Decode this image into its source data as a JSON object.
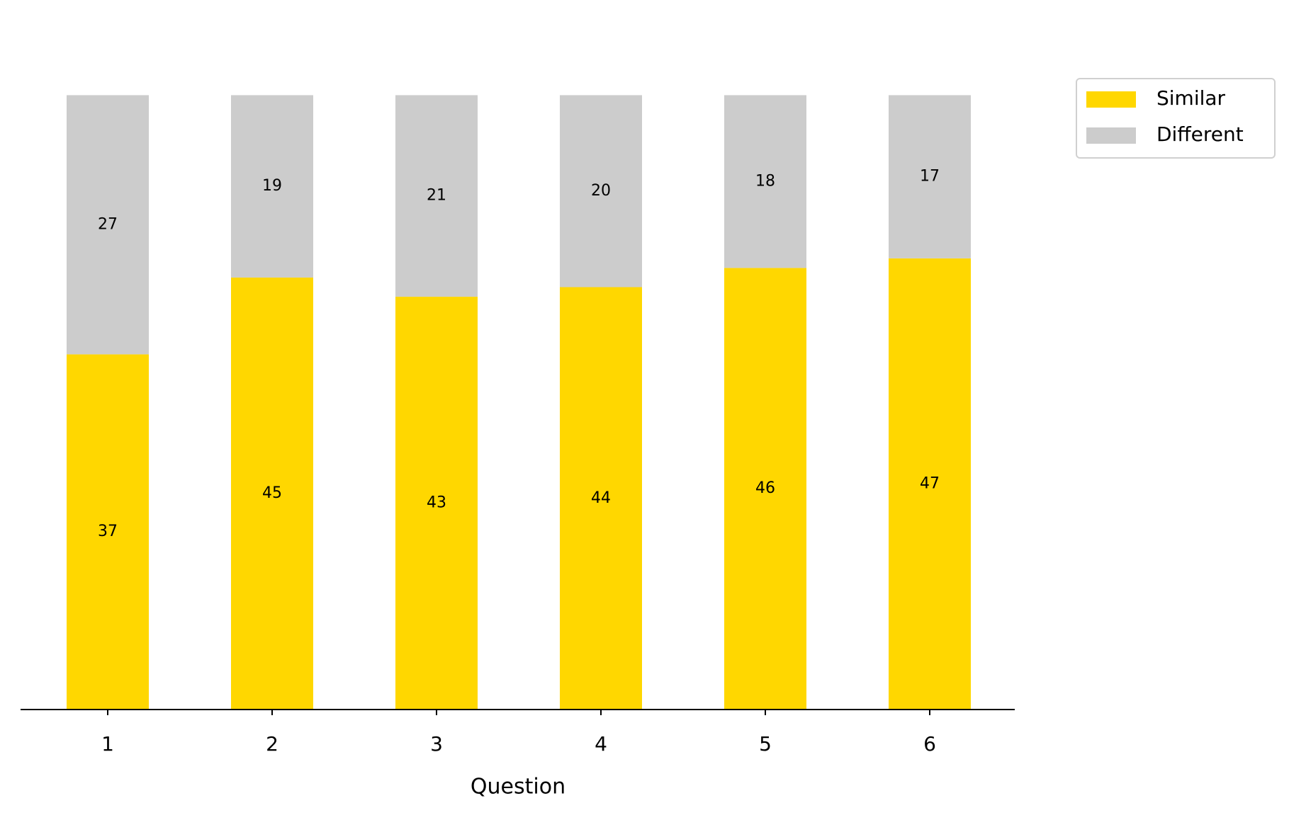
{
  "chart_data": {
    "type": "stacked-bar",
    "xlabel": "Question",
    "categories": [
      "1",
      "2",
      "3",
      "4",
      "5",
      "6"
    ],
    "series": [
      {
        "name": "Similar",
        "color": "#ffd700",
        "values": [
          37,
          45,
          43,
          44,
          46,
          47
        ]
      },
      {
        "name": "Different",
        "color": "#cccccc",
        "values": [
          27,
          19,
          21,
          20,
          18,
          17
        ]
      }
    ],
    "ylim": [
      0,
      67.2
    ],
    "legend": "upper right outside"
  }
}
